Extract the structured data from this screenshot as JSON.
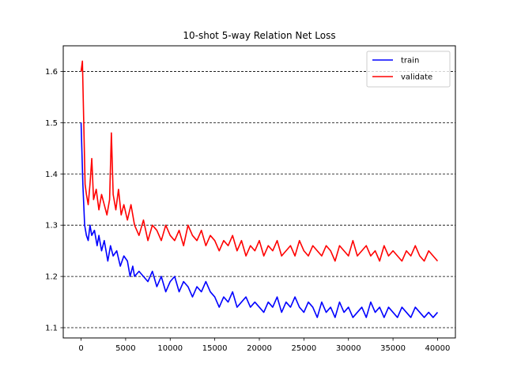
{
  "chart_data": {
    "type": "line",
    "title": "10-shot 5-way Relation Net Loss",
    "xlabel": "",
    "ylabel": "",
    "xlim": [
      -2000,
      42000
    ],
    "ylim": [
      1.08,
      1.65
    ],
    "xticks": [
      0,
      5000,
      10000,
      15000,
      20000,
      25000,
      30000,
      35000,
      40000
    ],
    "xtick_labels": [
      "0",
      "5000",
      "10000",
      "15000",
      "20000",
      "25000",
      "30000",
      "35000",
      "40000"
    ],
    "yticks": [
      1.1,
      1.2,
      1.3,
      1.4,
      1.5,
      1.6
    ],
    "ytick_labels": [
      "1.1",
      "1.2",
      "1.3",
      "1.4",
      "1.5",
      "1.6"
    ],
    "grid": "horizontal dashed",
    "legend_position": "top-right",
    "series": [
      {
        "name": "train",
        "color": "#0000ff",
        "x": [
          0,
          200,
          400,
          600,
          800,
          1000,
          1200,
          1500,
          1800,
          2000,
          2300,
          2600,
          3000,
          3300,
          3600,
          4000,
          4400,
          4800,
          5200,
          5500,
          5800,
          6000,
          6500,
          7000,
          7500,
          8000,
          8500,
          9000,
          9500,
          10000,
          10500,
          11000,
          11500,
          12000,
          12500,
          13000,
          13500,
          14000,
          14500,
          15000,
          15500,
          16000,
          16500,
          17000,
          17500,
          18000,
          18500,
          19000,
          19500,
          20000,
          20500,
          21000,
          21500,
          22000,
          22500,
          23000,
          23500,
          24000,
          24500,
          25000,
          25500,
          26000,
          26500,
          27000,
          27500,
          28000,
          28500,
          29000,
          29500,
          30000,
          30500,
          31000,
          31500,
          32000,
          32500,
          33000,
          33500,
          34000,
          34500,
          35000,
          35500,
          36000,
          36500,
          37000,
          37500,
          38000,
          38500,
          39000,
          39500,
          40000
        ],
        "values": [
          1.5,
          1.38,
          1.3,
          1.28,
          1.27,
          1.3,
          1.28,
          1.29,
          1.26,
          1.28,
          1.25,
          1.27,
          1.23,
          1.26,
          1.24,
          1.25,
          1.22,
          1.24,
          1.23,
          1.2,
          1.22,
          1.2,
          1.21,
          1.2,
          1.19,
          1.21,
          1.18,
          1.2,
          1.17,
          1.19,
          1.2,
          1.17,
          1.19,
          1.18,
          1.16,
          1.18,
          1.17,
          1.19,
          1.17,
          1.16,
          1.14,
          1.16,
          1.15,
          1.17,
          1.14,
          1.15,
          1.16,
          1.14,
          1.15,
          1.14,
          1.13,
          1.15,
          1.14,
          1.16,
          1.13,
          1.15,
          1.14,
          1.16,
          1.14,
          1.13,
          1.15,
          1.14,
          1.12,
          1.15,
          1.13,
          1.14,
          1.12,
          1.15,
          1.13,
          1.14,
          1.12,
          1.13,
          1.14,
          1.12,
          1.15,
          1.13,
          1.14,
          1.12,
          1.14,
          1.13,
          1.12,
          1.14,
          1.13,
          1.12,
          1.14,
          1.13,
          1.12,
          1.13,
          1.12,
          1.13
        ]
      },
      {
        "name": "validate",
        "color": "#ff0000",
        "x": [
          0,
          150,
          300,
          450,
          600,
          800,
          1000,
          1200,
          1400,
          1700,
          2000,
          2300,
          2600,
          2900,
          3200,
          3400,
          3600,
          3900,
          4200,
          4500,
          4800,
          5200,
          5600,
          6000,
          6500,
          7000,
          7500,
          8000,
          8500,
          9000,
          9500,
          10000,
          10500,
          11000,
          11500,
          12000,
          12500,
          13000,
          13500,
          14000,
          14500,
          15000,
          15500,
          16000,
          16500,
          17000,
          17500,
          18000,
          18500,
          19000,
          19500,
          20000,
          20500,
          21000,
          21500,
          22000,
          22500,
          23000,
          23500,
          24000,
          24500,
          25000,
          25500,
          26000,
          26500,
          27000,
          27500,
          28000,
          28500,
          29000,
          29500,
          30000,
          30500,
          31000,
          31500,
          32000,
          32500,
          33000,
          33500,
          34000,
          34500,
          35000,
          35500,
          36000,
          36500,
          37000,
          37500,
          38000,
          38500,
          39000,
          39500,
          40000
        ],
        "values": [
          1.6,
          1.62,
          1.5,
          1.38,
          1.36,
          1.34,
          1.38,
          1.43,
          1.35,
          1.37,
          1.33,
          1.36,
          1.34,
          1.32,
          1.35,
          1.48,
          1.36,
          1.33,
          1.37,
          1.32,
          1.34,
          1.31,
          1.34,
          1.3,
          1.28,
          1.31,
          1.27,
          1.3,
          1.29,
          1.27,
          1.3,
          1.28,
          1.27,
          1.29,
          1.26,
          1.3,
          1.28,
          1.27,
          1.29,
          1.26,
          1.28,
          1.27,
          1.25,
          1.27,
          1.26,
          1.28,
          1.25,
          1.27,
          1.24,
          1.26,
          1.25,
          1.27,
          1.24,
          1.26,
          1.25,
          1.27,
          1.24,
          1.25,
          1.26,
          1.24,
          1.27,
          1.25,
          1.24,
          1.26,
          1.25,
          1.24,
          1.26,
          1.25,
          1.23,
          1.26,
          1.25,
          1.24,
          1.27,
          1.24,
          1.25,
          1.26,
          1.24,
          1.25,
          1.23,
          1.26,
          1.24,
          1.25,
          1.24,
          1.23,
          1.25,
          1.24,
          1.26,
          1.24,
          1.23,
          1.25,
          1.24,
          1.23
        ]
      }
    ]
  }
}
